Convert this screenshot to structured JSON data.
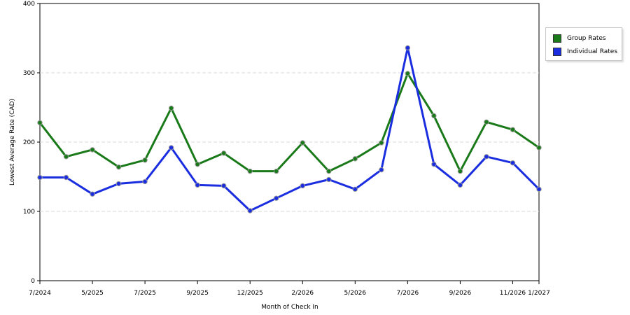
{
  "chart_data": {
    "type": "line",
    "xlabel": "Month of Check In",
    "ylabel": "Lowest Average Rate (CAD)",
    "ylim": [
      0,
      400
    ],
    "yticks": [
      0,
      100,
      200,
      300,
      400
    ],
    "grid": "horizontal dashed",
    "legend_position": "right",
    "x_tick_labels": [
      "7/2024",
      "5/2025",
      "7/2025",
      "9/2025",
      "12/2025",
      "2/2026",
      "5/2026",
      "7/2026",
      "9/2026",
      "11/2026",
      "1/2027"
    ],
    "x_tick_point_index": [
      0,
      2,
      4,
      6,
      8,
      10,
      12,
      14,
      16,
      18,
      19
    ],
    "series": [
      {
        "name": "Group Rates",
        "color": "#1a7a1a",
        "values": [
          228,
          179,
          189,
          164,
          174,
          249,
          168,
          184,
          158,
          158,
          199,
          158,
          176,
          199,
          299,
          238,
          158,
          229,
          218,
          192
        ]
      },
      {
        "name": "Individual Rates",
        "color": "#1a2ee0",
        "values": [
          149,
          149,
          125,
          140,
          143,
          192,
          138,
          137,
          101,
          119,
          137,
          146,
          132,
          160,
          336,
          168,
          138,
          179,
          170,
          132
        ]
      }
    ]
  }
}
